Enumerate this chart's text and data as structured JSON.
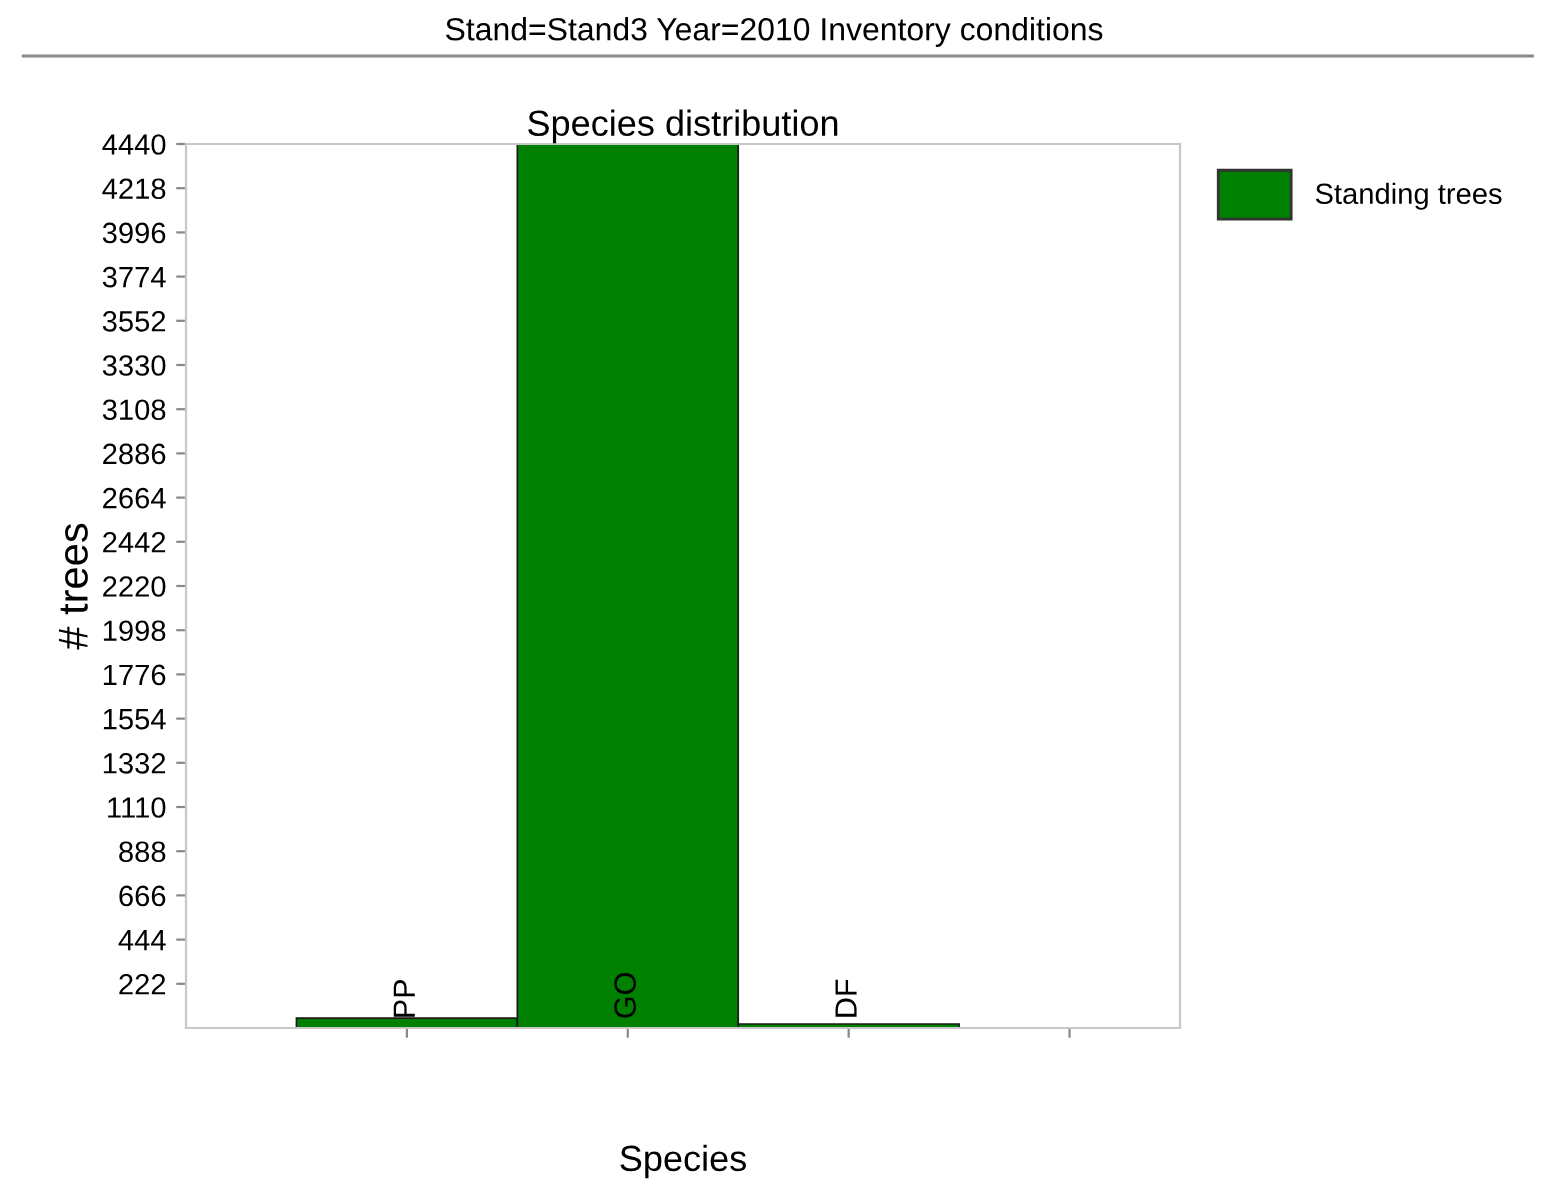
{
  "chart_data": {
    "type": "bar",
    "title": "Stand=Stand3 Year=2010 Inventory conditions",
    "subtitle": "Species distribution",
    "xlabel": "Species",
    "ylabel": "# trees",
    "categories": [
      "PP",
      "GO",
      "DF",
      null
    ],
    "series": [
      {
        "name": "Standing trees",
        "color": "#008000",
        "values": [
          50,
          4440,
          20,
          null
        ]
      }
    ],
    "ylim": [
      0,
      4440
    ],
    "yticks": [
      222,
      444,
      666,
      888,
      1110,
      1332,
      1554,
      1776,
      1998,
      2220,
      2442,
      2664,
      2886,
      3108,
      3330,
      3552,
      3774,
      3996,
      4218,
      4440
    ],
    "grid": false,
    "legend": "top right"
  }
}
